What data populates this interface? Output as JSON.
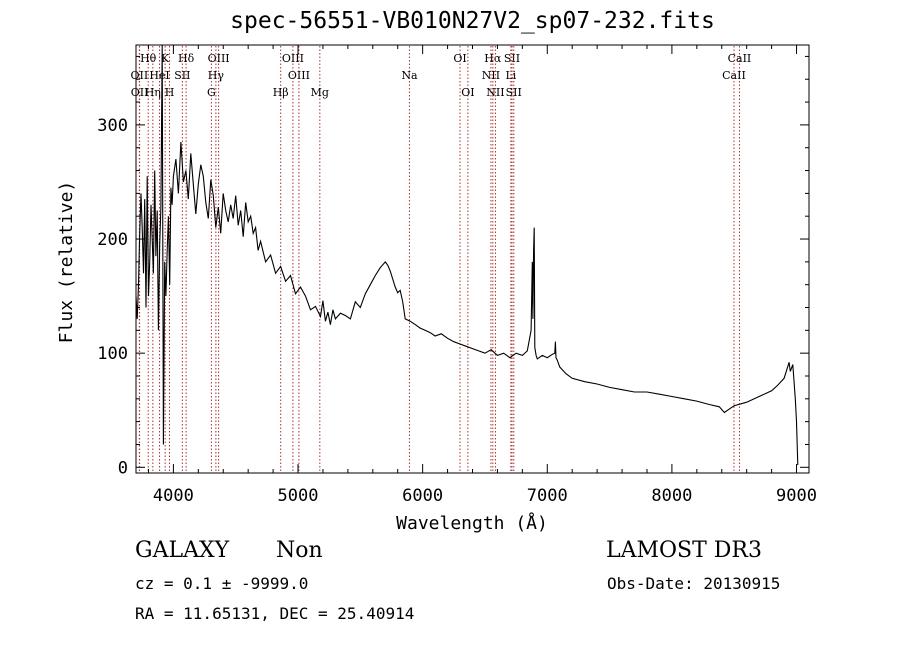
{
  "chart_data": {
    "type": "line",
    "title": "spec-56551-VB010N27V2_sp07-232.fits",
    "xlabel": "Wavelength (Å)",
    "ylabel": "Flux (relative)",
    "xlim": [
      3700,
      9100
    ],
    "ylim": [
      -5,
      370
    ],
    "xticks": [
      4000,
      5000,
      6000,
      7000,
      8000,
      9000
    ],
    "yticks": [
      0,
      100,
      200,
      300
    ],
    "grid": false,
    "series": [
      {
        "name": "flux",
        "x": [
          3700,
          3710,
          3720,
          3730,
          3740,
          3750,
          3760,
          3770,
          3780,
          3790,
          3800,
          3810,
          3820,
          3830,
          3840,
          3850,
          3860,
          3870,
          3880,
          3890,
          3900,
          3910,
          3920,
          3930,
          3940,
          3950,
          3960,
          3970,
          3980,
          3990,
          4000,
          4020,
          4040,
          4060,
          4080,
          4100,
          4120,
          4140,
          4160,
          4180,
          4200,
          4220,
          4240,
          4260,
          4280,
          4300,
          4320,
          4340,
          4360,
          4380,
          4400,
          4420,
          4440,
          4460,
          4480,
          4500,
          4520,
          4540,
          4560,
          4580,
          4600,
          4620,
          4640,
          4660,
          4680,
          4700,
          4740,
          4780,
          4820,
          4860,
          4900,
          4940,
          4980,
          5020,
          5060,
          5100,
          5140,
          5180,
          5200,
          5220,
          5240,
          5260,
          5280,
          5300,
          5340,
          5380,
          5420,
          5460,
          5500,
          5540,
          5580,
          5620,
          5660,
          5700,
          5720,
          5740,
          5760,
          5780,
          5800,
          5820,
          5840,
          5860,
          5900,
          5940,
          5980,
          6020,
          6060,
          6100,
          6150,
          6200,
          6250,
          6300,
          6350,
          6400,
          6450,
          6500,
          6550,
          6600,
          6650,
          6700,
          6750,
          6800,
          6840,
          6870,
          6880,
          6885,
          6890,
          6895,
          6900,
          6910,
          6920,
          6960,
          7000,
          7040,
          7060,
          7065,
          7070,
          7080,
          7100,
          7150,
          7200,
          7300,
          7400,
          7500,
          7600,
          7700,
          7800,
          7900,
          8000,
          8100,
          8200,
          8300,
          8380,
          8420,
          8500,
          8600,
          8700,
          8800,
          8850,
          8900,
          8920,
          8940,
          8950,
          8970,
          8990,
          9000,
          9010
        ],
        "values": [
          150,
          130,
          160,
          205,
          240,
          210,
          170,
          235,
          140,
          255,
          150,
          180,
          230,
          200,
          170,
          260,
          185,
          225,
          120,
          195,
          228,
          370,
          20,
          180,
          150,
          190,
          220,
          160,
          245,
          230,
          255,
          270,
          240,
          285,
          250,
          260,
          235,
          275,
          248,
          222,
          248,
          265,
          255,
          232,
          218,
          252,
          238,
          210,
          228,
          205,
          240,
          225,
          215,
          230,
          218,
          238,
          212,
          225,
          202,
          232,
          215,
          220,
          205,
          210,
          190,
          198,
          180,
          186,
          170,
          176,
          163,
          168,
          152,
          158,
          150,
          138,
          141,
          132,
          146,
          128,
          136,
          125,
          138,
          130,
          135,
          133,
          130,
          145,
          140,
          152,
          160,
          168,
          175,
          180,
          177,
          172,
          165,
          158,
          153,
          155,
          145,
          130,
          128,
          125,
          122,
          120,
          118,
          115,
          117,
          113,
          110,
          108,
          106,
          104,
          102,
          100,
          103,
          98,
          100,
          96,
          100,
          98,
          102,
          120,
          180,
          130,
          190,
          210,
          105,
          98,
          95,
          98,
          96,
          99,
          100,
          110,
          96,
          94,
          88,
          82,
          78,
          75,
          73,
          70,
          68,
          66,
          66,
          64,
          62,
          60,
          58,
          55,
          53,
          48,
          54,
          57,
          62,
          67,
          72,
          78,
          85,
          92,
          84,
          90,
          60,
          40,
          2
        ]
      }
    ],
    "lines": [
      {
        "name": "OII",
        "x": 3727,
        "row": 2
      },
      {
        "name": "OII",
        "x": 3729,
        "row": 3
      },
      {
        "name": "Hθ",
        "x": 3798,
        "row": 1
      },
      {
        "name": "HeI",
        "x": 3889,
        "row": 2
      },
      {
        "name": "Hη",
        "x": 3835,
        "row": 3
      },
      {
        "name": "K",
        "x": 3934,
        "row": 1
      },
      {
        "name": "H",
        "x": 3969,
        "row": 3
      },
      {
        "name": "Hδ",
        "x": 4102,
        "row": 1
      },
      {
        "name": "SII",
        "x": 4072,
        "row": 2
      },
      {
        "name": "OIII",
        "x": 4363,
        "row": 1
      },
      {
        "name": "Hγ",
        "x": 4341,
        "row": 2
      },
      {
        "name": "G",
        "x": 4305,
        "row": 3
      },
      {
        "name": "OIII",
        "x": 4959,
        "row": 1
      },
      {
        "name": "OIII",
        "x": 5007,
        "row": 2
      },
      {
        "name": "Hβ",
        "x": 4861,
        "row": 3
      },
      {
        "name": "Mg",
        "x": 5175,
        "row": 3
      },
      {
        "name": "Na",
        "x": 5894,
        "row": 2
      },
      {
        "name": "OI",
        "x": 6300,
        "row": 1
      },
      {
        "name": "OI",
        "x": 6363,
        "row": 3
      },
      {
        "name": "Hα",
        "x": 6563,
        "row": 1
      },
      {
        "name": "NII",
        "x": 6548,
        "row": 2
      },
      {
        "name": "NII",
        "x": 6584,
        "row": 3
      },
      {
        "name": "SII",
        "x": 6717,
        "row": 1
      },
      {
        "name": "Li",
        "x": 6708,
        "row": 2
      },
      {
        "name": "SII",
        "x": 6731,
        "row": 3
      },
      {
        "name": "CaII",
        "x": 8542,
        "row": 1
      },
      {
        "name": "CaII",
        "x": 8498,
        "row": 2
      }
    ]
  },
  "info": {
    "object_class": "GALAXY",
    "subclass": "Non",
    "survey": "LAMOST DR3",
    "cz_line": "cz = 0.1 ± -9999.0",
    "obs_date": "Obs-Date: 20130915",
    "coords": "RA =  11.65131, DEC =  25.40914"
  }
}
